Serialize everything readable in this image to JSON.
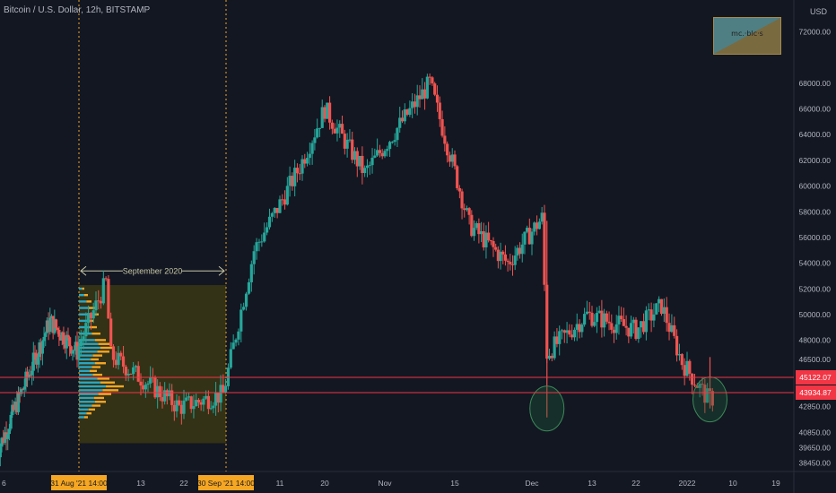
{
  "header": {
    "symbol_title": "Bitcoin / U.S. Dollar, 12h, BITSTAMP",
    "currency": "USD",
    "logo_text": "mc.·blc·s"
  },
  "annotation": {
    "range_label": "September 2020"
  },
  "price_badges": {
    "upper": "45122.07",
    "lower": "43934.87"
  },
  "colors": {
    "background": "#131722",
    "up": "#26a69a",
    "down": "#ef5350",
    "price_line": "#f23645",
    "range_fill": "#3a3714",
    "vp_orange": "#f5a623",
    "vp_blue": "#2aa7c4",
    "vline": "#f5a623",
    "circle": "#1e5c3a"
  },
  "chart_data": {
    "type": "candlestick",
    "title": "Bitcoin / U.S. Dollar, 12h, BITSTAMP",
    "xlabel": "",
    "ylabel": "USD",
    "ylim": [
      37800,
      72800
    ],
    "y_ticks": [
      "72000.00",
      "68000.00",
      "66000.00",
      "64000.00",
      "62000.00",
      "60000.00",
      "58000.00",
      "56000.00",
      "54000.00",
      "52000.00",
      "50000.00",
      "48000.00",
      "46500.00",
      "44900.00",
      "42850.00",
      "40850.00",
      "39650.00",
      "38450.00"
    ],
    "x_ticks": [
      "6",
      "31 Aug '21  14:00",
      "13",
      "22",
      "30 Sep '21  14:00",
      "11",
      "20",
      "Nov",
      "15",
      "Dec",
      "13",
      "22",
      "2022",
      "10",
      "19"
    ],
    "highlighted_x_ticks": [
      "31 Aug '21  14:00",
      "30 Sep '21  14:00"
    ],
    "current_prices": [
      45122.07,
      43934.87
    ],
    "circled_lows": [
      {
        "date": "Dec 4 2021",
        "price": 42200
      },
      {
        "date": "Jan 5 2022",
        "price": 42800
      }
    ],
    "volume_profile_range": {
      "label": "September 2020",
      "start": "31 Aug '21  14:00",
      "end": "30 Sep '21  14:00"
    },
    "ohlc_key_points": [
      {
        "date": "Aug 16",
        "close": 46000
      },
      {
        "date": "Aug 22",
        "close": 49500
      },
      {
        "date": "Aug 31",
        "close": 47100
      },
      {
        "date": "Sep 6",
        "close": 52500
      },
      {
        "date": "Sep 7",
        "close": 46800
      },
      {
        "date": "Sep 21",
        "close": 42800
      },
      {
        "date": "Sep 30",
        "close": 43800
      },
      {
        "date": "Oct 6",
        "close": 55000
      },
      {
        "date": "Oct 15",
        "close": 61500
      },
      {
        "date": "Oct 20",
        "close": 66000
      },
      {
        "date": "Oct 28",
        "close": 61000
      },
      {
        "date": "Nov 10",
        "close": 68000
      },
      {
        "date": "Nov 18",
        "close": 57000
      },
      {
        "date": "Nov 26",
        "close": 54000
      },
      {
        "date": "Dec 3",
        "close": 57500
      },
      {
        "date": "Dec 4",
        "close": 47000
      },
      {
        "date": "Dec 12",
        "close": 50000
      },
      {
        "date": "Dec 22",
        "close": 48800
      },
      {
        "date": "Dec 27",
        "close": 50700
      },
      {
        "date": "Dec 31",
        "close": 46300
      },
      {
        "date": "Jan 5",
        "close": 43500
      }
    ]
  }
}
